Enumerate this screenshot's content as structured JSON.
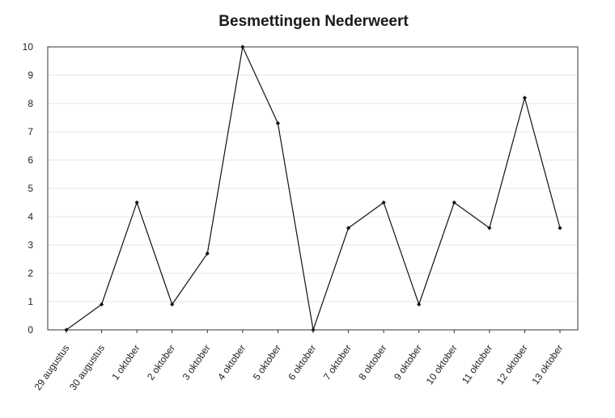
{
  "chart_data": {
    "type": "line",
    "title": "Besmettingen Nederweert",
    "xlabel": "",
    "ylabel": "",
    "categories": [
      "29 augustus",
      "30 augustus",
      "1 oktober",
      "2 oktober",
      "3 oktober",
      "4 oktober",
      "5 oktober",
      "6 oktober",
      "7 oktober",
      "8 oktober",
      "9 oktober",
      "10 oktober",
      "11 oktober",
      "12 oktober",
      "13 oktober"
    ],
    "values": [
      0,
      0.9,
      4.5,
      0.9,
      2.7,
      10,
      7.3,
      0,
      3.6,
      4.5,
      0.9,
      4.5,
      3.6,
      8.2,
      3.6
    ],
    "ylim": [
      0,
      10
    ],
    "yticks": [
      0,
      1,
      2,
      3,
      4,
      5,
      6,
      7,
      8,
      9,
      10
    ],
    "grid": true,
    "legend": "none",
    "colors": {
      "line": "#111111",
      "grid": "#e6e6e6"
    }
  }
}
